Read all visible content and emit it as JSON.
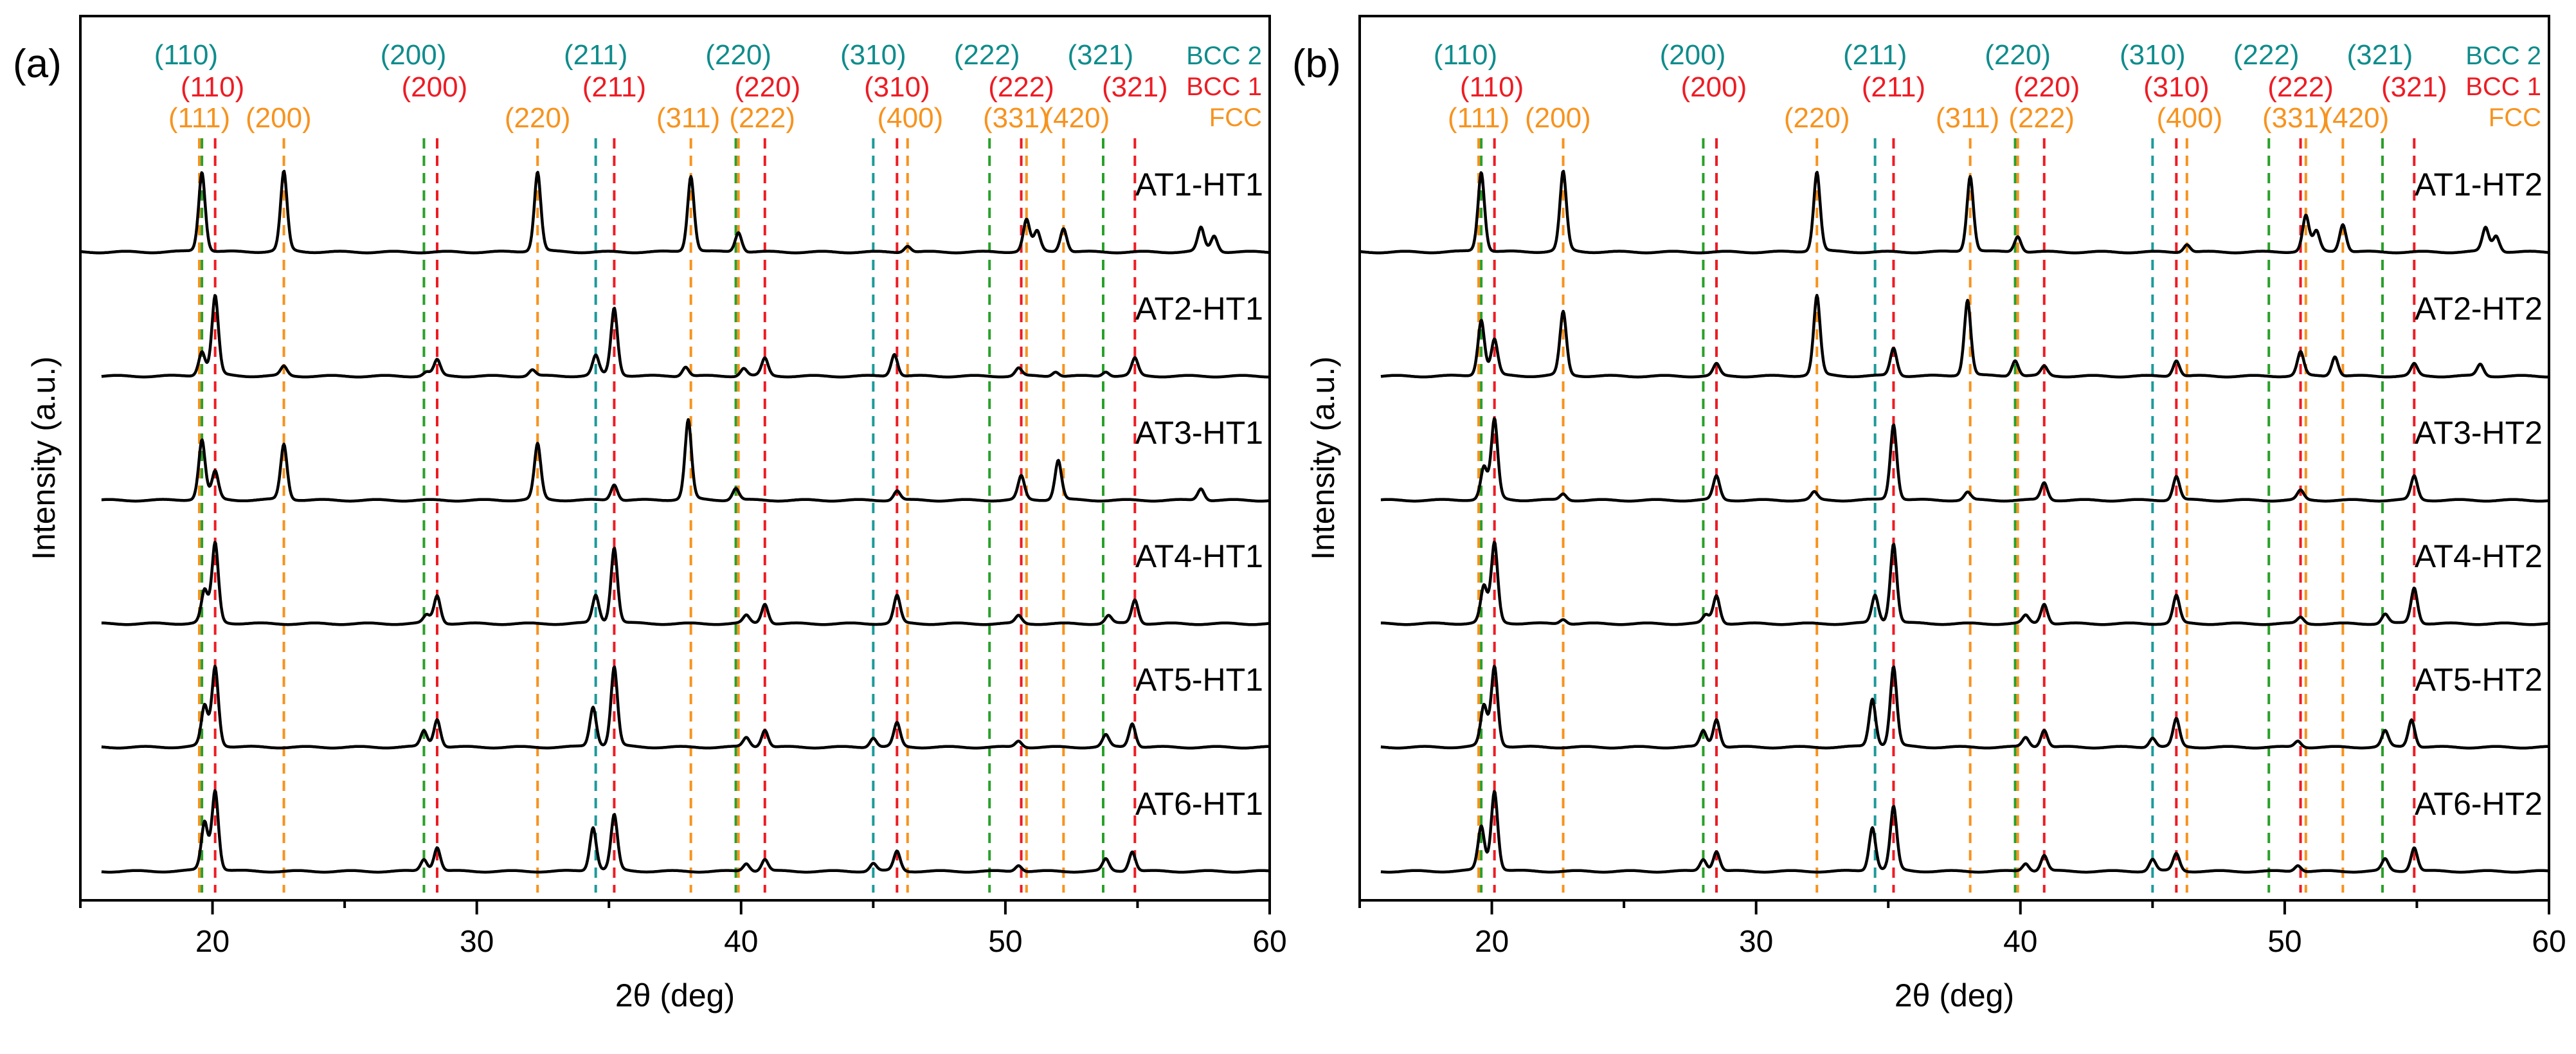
{
  "chart_data": [
    {
      "type": "line",
      "panel_label": "(a)",
      "xlabel": "2θ (deg)",
      "ylabel": "Intensity (a.u.)",
      "xlim": [
        15,
        60
      ],
      "xticks": [
        20,
        30,
        40,
        50,
        60
      ],
      "yticks": [],
      "grid": false,
      "series": [
        {
          "name": "AT1-HT1",
          "peaks": [
            [
              19.6,
              1.0
            ],
            [
              22.7,
              1.0
            ],
            [
              32.3,
              1.0
            ],
            [
              38.1,
              0.95
            ],
            [
              39.9,
              0.25
            ],
            [
              46.3,
              0.08
            ],
            [
              50.8,
              0.4
            ],
            [
              51.2,
              0.25
            ],
            [
              52.2,
              0.3
            ],
            [
              57.4,
              0.3
            ],
            [
              57.9,
              0.2
            ]
          ]
        },
        {
          "name": "AT2-HT1",
          "peaks": [
            [
              19.6,
              0.3
            ],
            [
              20.1,
              1.0
            ],
            [
              22.7,
              0.12
            ],
            [
              28.1,
              0.05
            ],
            [
              28.5,
              0.2
            ],
            [
              32.1,
              0.08
            ],
            [
              34.5,
              0.25
            ],
            [
              35.2,
              0.85
            ],
            [
              37.9,
              0.12
            ],
            [
              40.1,
              0.1
            ],
            [
              40.9,
              0.22
            ],
            [
              45.8,
              0.28
            ],
            [
              50.5,
              0.1
            ],
            [
              51.9,
              0.06
            ],
            [
              53.8,
              0.06
            ],
            [
              54.9,
              0.22
            ]
          ]
        },
        {
          "name": "AT3-HT1",
          "peaks": [
            [
              19.6,
              0.75
            ],
            [
              20.1,
              0.35
            ],
            [
              22.7,
              0.7
            ],
            [
              32.3,
              0.7
            ],
            [
              35.2,
              0.2
            ],
            [
              38.0,
              1.0
            ],
            [
              39.8,
              0.15
            ],
            [
              45.9,
              0.12
            ],
            [
              50.6,
              0.3
            ],
            [
              52.0,
              0.5
            ],
            [
              57.4,
              0.15
            ]
          ]
        },
        {
          "name": "AT4-HT1",
          "peaks": [
            [
              19.7,
              0.4
            ],
            [
              20.1,
              1.0
            ],
            [
              28.1,
              0.1
            ],
            [
              28.5,
              0.35
            ],
            [
              34.5,
              0.35
            ],
            [
              35.2,
              0.95
            ],
            [
              40.2,
              0.1
            ],
            [
              40.9,
              0.25
            ],
            [
              45.9,
              0.35
            ],
            [
              50.5,
              0.1
            ],
            [
              53.9,
              0.1
            ],
            [
              54.9,
              0.3
            ]
          ]
        },
        {
          "name": "AT5-HT1",
          "peaks": [
            [
              19.7,
              0.5
            ],
            [
              20.1,
              1.0
            ],
            [
              28.0,
              0.2
            ],
            [
              28.5,
              0.35
            ],
            [
              34.4,
              0.5
            ],
            [
              35.2,
              1.0
            ],
            [
              40.2,
              0.12
            ],
            [
              40.9,
              0.22
            ],
            [
              45.0,
              0.12
            ],
            [
              45.9,
              0.3
            ],
            [
              50.5,
              0.08
            ],
            [
              53.8,
              0.15
            ],
            [
              54.8,
              0.3
            ]
          ]
        },
        {
          "name": "AT6-HT1",
          "peaks": [
            [
              19.7,
              0.6
            ],
            [
              20.1,
              1.0
            ],
            [
              28.0,
              0.15
            ],
            [
              28.5,
              0.3
            ],
            [
              34.4,
              0.55
            ],
            [
              35.2,
              0.7
            ],
            [
              40.2,
              0.1
            ],
            [
              40.9,
              0.15
            ],
            [
              45.0,
              0.1
            ],
            [
              45.9,
              0.25
            ],
            [
              50.5,
              0.08
            ],
            [
              53.8,
              0.15
            ],
            [
              54.8,
              0.25
            ]
          ]
        }
      ],
      "reference_lines": {
        "BCC 2": [
          19.6,
          28.0,
          34.5,
          39.8,
          45.0,
          49.4,
          53.7
        ],
        "BCC 1": [
          20.1,
          28.5,
          35.2,
          40.9,
          45.9,
          50.6,
          54.9
        ],
        "FCC": [
          19.5,
          22.7,
          32.3,
          38.1,
          39.9,
          46.3,
          50.8,
          52.2
        ]
      },
      "reflection_labels": {
        "BCC 2": [
          [
            "(110)",
            19.0
          ],
          [
            "(200)",
            27.6
          ],
          [
            "(211)",
            34.5
          ],
          [
            "(220)",
            39.9
          ],
          [
            "(310)",
            45.0
          ],
          [
            "(222)",
            49.3
          ],
          [
            "(321)",
            53.6
          ]
        ],
        "BCC 1": [
          [
            "(110)",
            20.0
          ],
          [
            "(200)",
            28.4
          ],
          [
            "(211)",
            35.2
          ],
          [
            "(220)",
            41.0
          ],
          [
            "(310)",
            45.9
          ],
          [
            "(222)",
            50.6
          ],
          [
            "(321)",
            54.9
          ]
        ],
        "FCC": [
          [
            "(111)",
            19.5
          ],
          [
            "(200)",
            22.5
          ],
          [
            "(220)",
            32.3
          ],
          [
            "(311)",
            38.0
          ],
          [
            "(222)",
            40.8
          ],
          [
            "(400)",
            46.4
          ],
          [
            "(331)",
            50.4
          ],
          [
            "(420)",
            52.7
          ]
        ]
      },
      "legend": [
        "BCC 2",
        "BCC 1",
        "FCC"
      ]
    },
    {
      "type": "line",
      "panel_label": "(b)",
      "xlabel": "2θ (deg)",
      "ylabel": "Intensity (a.u.)",
      "xlim": [
        15,
        60
      ],
      "xticks": [
        20,
        30,
        40,
        50,
        60
      ],
      "yticks": [],
      "grid": false,
      "series": [
        {
          "name": "AT1-HT2",
          "peaks": [
            [
              19.6,
              1.0
            ],
            [
              22.7,
              1.0
            ],
            [
              32.3,
              1.0
            ],
            [
              38.1,
              0.95
            ],
            [
              39.9,
              0.2
            ],
            [
              46.3,
              0.1
            ],
            [
              50.8,
              0.45
            ],
            [
              51.2,
              0.25
            ],
            [
              52.2,
              0.35
            ],
            [
              57.6,
              0.3
            ],
            [
              58.0,
              0.2
            ]
          ]
        },
        {
          "name": "AT2-HT2",
          "peaks": [
            [
              19.6,
              0.7
            ],
            [
              20.1,
              0.45
            ],
            [
              22.7,
              0.8
            ],
            [
              28.5,
              0.15
            ],
            [
              32.3,
              1.0
            ],
            [
              35.2,
              0.35
            ],
            [
              38.0,
              0.95
            ],
            [
              39.8,
              0.2
            ],
            [
              40.9,
              0.12
            ],
            [
              45.9,
              0.2
            ],
            [
              50.6,
              0.3
            ],
            [
              51.9,
              0.25
            ],
            [
              54.9,
              0.15
            ],
            [
              57.4,
              0.15
            ]
          ]
        },
        {
          "name": "AT3-HT2",
          "peaks": [
            [
              19.7,
              0.4
            ],
            [
              20.1,
              1.0
            ],
            [
              22.7,
              0.08
            ],
            [
              28.5,
              0.3
            ],
            [
              32.2,
              0.1
            ],
            [
              35.2,
              0.95
            ],
            [
              38.0,
              0.1
            ],
            [
              40.9,
              0.22
            ],
            [
              45.9,
              0.3
            ],
            [
              50.6,
              0.12
            ],
            [
              54.9,
              0.3
            ]
          ]
        },
        {
          "name": "AT4-HT2",
          "peaks": [
            [
              19.7,
              0.45
            ],
            [
              20.1,
              1.0
            ],
            [
              22.7,
              0.06
            ],
            [
              28.1,
              0.1
            ],
            [
              28.5,
              0.35
            ],
            [
              34.5,
              0.35
            ],
            [
              35.2,
              1.0
            ],
            [
              40.2,
              0.1
            ],
            [
              40.9,
              0.25
            ],
            [
              45.9,
              0.35
            ],
            [
              50.6,
              0.08
            ],
            [
              53.8,
              0.12
            ],
            [
              54.9,
              0.45
            ]
          ]
        },
        {
          "name": "AT5-HT2",
          "peaks": [
            [
              19.7,
              0.5
            ],
            [
              20.1,
              1.0
            ],
            [
              28.0,
              0.2
            ],
            [
              28.5,
              0.35
            ],
            [
              34.4,
              0.6
            ],
            [
              35.2,
              1.0
            ],
            [
              40.2,
              0.12
            ],
            [
              40.9,
              0.22
            ],
            [
              45.0,
              0.12
            ],
            [
              45.9,
              0.35
            ],
            [
              50.5,
              0.08
            ],
            [
              53.8,
              0.2
            ],
            [
              54.8,
              0.35
            ]
          ]
        },
        {
          "name": "AT6-HT2",
          "peaks": [
            [
              19.6,
              0.55
            ],
            [
              20.1,
              1.0
            ],
            [
              28.0,
              0.15
            ],
            [
              28.5,
              0.25
            ],
            [
              34.4,
              0.55
            ],
            [
              35.2,
              0.8
            ],
            [
              40.2,
              0.1
            ],
            [
              40.9,
              0.2
            ],
            [
              45.0,
              0.15
            ],
            [
              45.9,
              0.22
            ],
            [
              50.5,
              0.08
            ],
            [
              53.8,
              0.15
            ],
            [
              54.9,
              0.3
            ]
          ]
        }
      ],
      "reference_lines": {
        "BCC 2": [
          19.6,
          28.0,
          34.5,
          39.8,
          45.0,
          49.4,
          53.7
        ],
        "BCC 1": [
          20.1,
          28.5,
          35.2,
          40.9,
          45.9,
          50.6,
          54.9
        ],
        "FCC": [
          19.5,
          22.7,
          32.3,
          38.1,
          39.9,
          46.3,
          50.8,
          52.2
        ]
      },
      "reflection_labels": {
        "BCC 2": [
          [
            "(110)",
            19.0
          ],
          [
            "(200)",
            27.6
          ],
          [
            "(211)",
            34.5
          ],
          [
            "(220)",
            39.9
          ],
          [
            "(310)",
            45.0
          ],
          [
            "(222)",
            49.3
          ],
          [
            "(321)",
            53.6
          ]
        ],
        "BCC 1": [
          [
            "(110)",
            20.0
          ],
          [
            "(200)",
            28.4
          ],
          [
            "(211)",
            35.2
          ],
          [
            "(220)",
            41.0
          ],
          [
            "(310)",
            45.9
          ],
          [
            "(222)",
            50.6
          ],
          [
            "(321)",
            54.9
          ]
        ],
        "FCC": [
          [
            "(111)",
            19.5
          ],
          [
            "(200)",
            22.5
          ],
          [
            "(220)",
            32.3
          ],
          [
            "(311)",
            38.0
          ],
          [
            "(222)",
            40.8
          ],
          [
            "(400)",
            46.4
          ],
          [
            "(331)",
            50.4
          ],
          [
            "(420)",
            52.7
          ]
        ]
      },
      "legend": [
        "BCC 2",
        "BCC 1",
        "FCC"
      ]
    }
  ],
  "colors": {
    "BCC 2": "#0f8c8c",
    "BCC 1": "#ed1c24",
    "FCC": "#f7931e",
    "FCC_line": "#f7931e",
    "BCC2_line": "#1f9a9a",
    "BCC1_line": "#ed1c24",
    "green_line": "#2aa02a",
    "trace": "#000000",
    "axis": "#000000"
  }
}
